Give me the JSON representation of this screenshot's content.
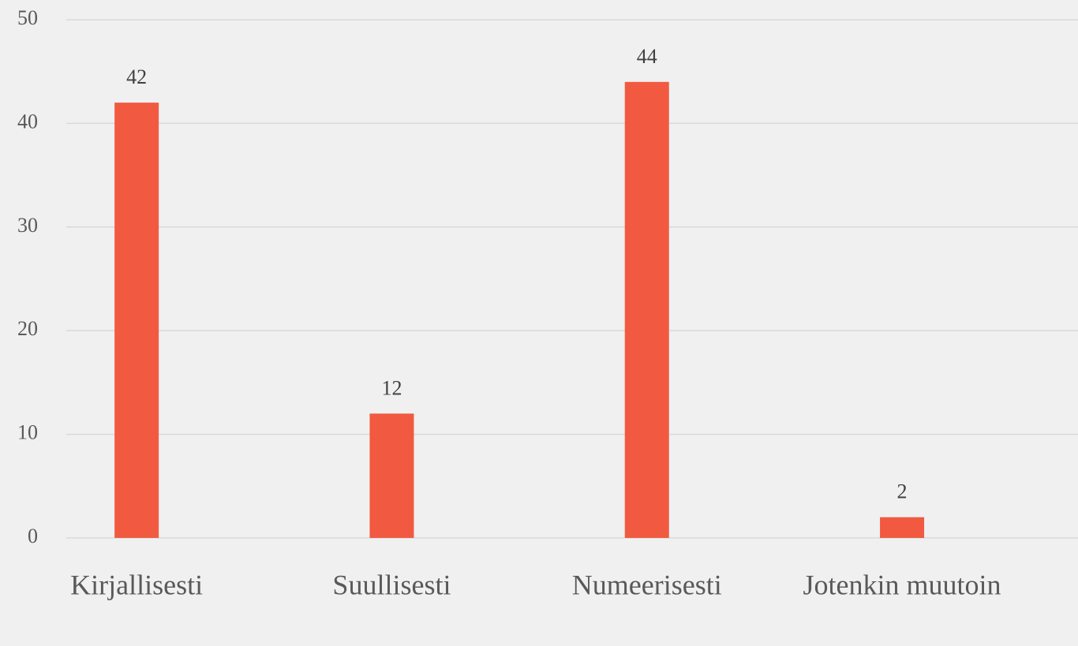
{
  "chart_data": {
    "type": "bar",
    "categories": [
      "Kirjallisesti",
      "Suullisesti",
      "Numeerisesti",
      "Jotenkin muutoin"
    ],
    "values": [
      42,
      12,
      44,
      2
    ],
    "color": "#f15a40",
    "ylim": [
      0,
      50
    ],
    "yticks": [
      0,
      10,
      20,
      30,
      40,
      50
    ],
    "grid": true
  }
}
